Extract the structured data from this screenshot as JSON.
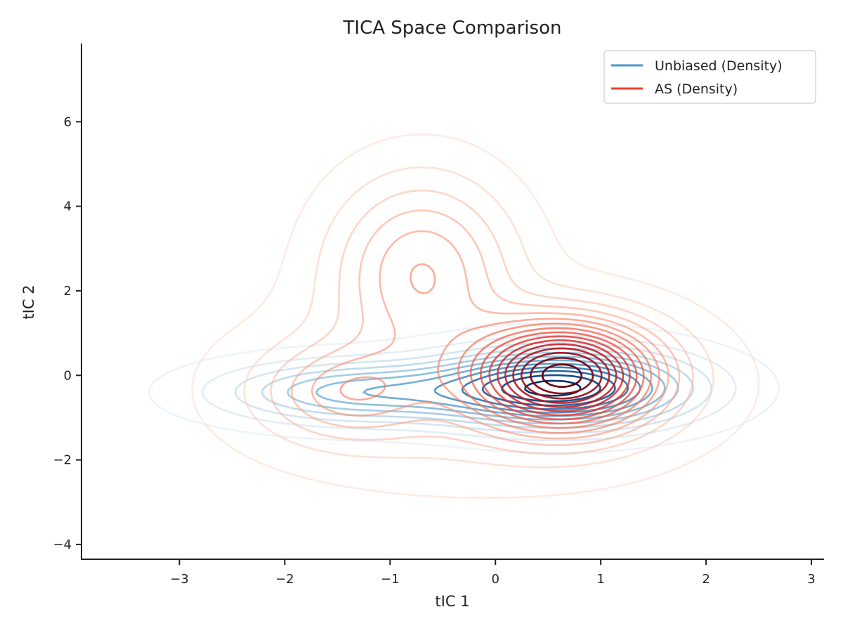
{
  "chart_data": {
    "type": "contour",
    "title": "TICA Space Comparison",
    "xlabel": "tIC 1",
    "ylabel": "tIC 2",
    "xlim": [
      -3.93,
      3.12
    ],
    "ylim": [
      -4.35,
      7.85
    ],
    "x_ticks": [
      -3,
      -2,
      -1,
      0,
      1,
      2,
      3
    ],
    "y_ticks": [
      -4,
      -2,
      0,
      2,
      4,
      6
    ],
    "x_tick_labels": [
      "−3",
      "−2",
      "−1",
      "0",
      "1",
      "2",
      "3"
    ],
    "y_tick_labels": [
      "−4",
      "−2",
      "0",
      "2",
      "4",
      "6"
    ],
    "grid": false,
    "legend_position": "top-right",
    "series": [
      {
        "name": "Unbiased (Density)",
        "color": "#4a98c9",
        "colormap": "Blues",
        "levels": 12,
        "components": [
          {
            "cx": 0.6,
            "cy": -0.3,
            "sx": 0.75,
            "sy": 0.55,
            "weight": 1.0
          },
          {
            "cx": -1.3,
            "cy": -0.4,
            "sx": 0.8,
            "sy": 0.45,
            "weight": 0.45
          }
        ]
      },
      {
        "name": "AS (Density)",
        "color": "#e8432e",
        "colormap": "Reds",
        "levels": 16,
        "components": [
          {
            "cx": 0.65,
            "cy": 0.0,
            "sx": 0.55,
            "sy": 0.8,
            "weight": 1.0
          },
          {
            "cx": -0.7,
            "cy": 2.5,
            "sx": 0.55,
            "sy": 1.4,
            "weight": 0.3
          },
          {
            "cx": -1.4,
            "cy": -0.4,
            "sx": 0.5,
            "sy": 0.7,
            "weight": 0.22
          },
          {
            "cx": -0.2,
            "cy": -0.3,
            "sx": 1.4,
            "sy": 1.4,
            "weight": 0.12
          }
        ]
      }
    ]
  }
}
